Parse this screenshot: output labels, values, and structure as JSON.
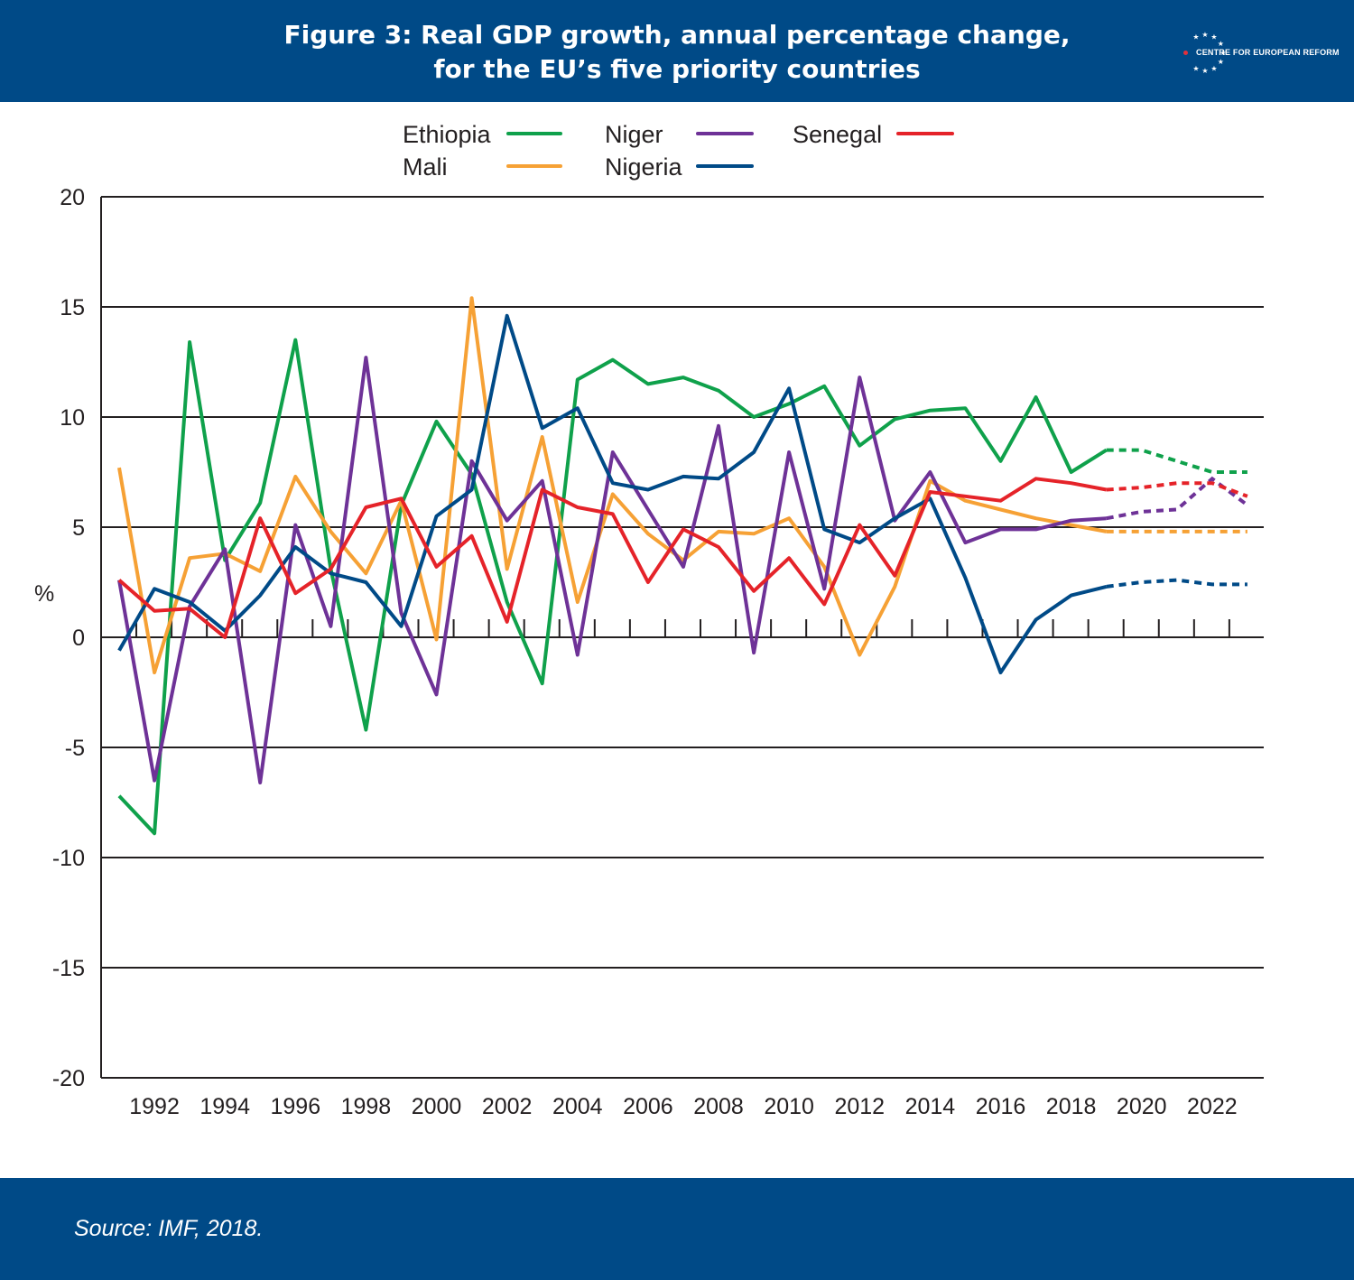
{
  "title": {
    "line1": "Figure 3: Real GDP growth, annual percentage change,",
    "line2": "for the EU’s five priority countries"
  },
  "logo": {
    "text": "CENTRE FOR EUROPEAN REFORM",
    "star_color": "#ffffff",
    "dot_color": "#e0313d"
  },
  "source": "Source: IMF, 2018.",
  "colors": {
    "header_bg": "#004a87",
    "grid": "#231f20"
  },
  "chart_data": {
    "type": "line",
    "ylabel": "%",
    "ylim": [
      -20,
      20
    ],
    "yticks": [
      20,
      15,
      10,
      5,
      0,
      -5,
      -10,
      -15,
      -20
    ],
    "xlim": [
      1991,
      2023
    ],
    "xtick_labels": [
      "1992",
      "1994",
      "1996",
      "1998",
      "2000",
      "2002",
      "2004",
      "2006",
      "2008",
      "2010",
      "2012",
      "2014",
      "2016",
      "2018",
      "2020",
      "2022"
    ],
    "grid": true,
    "legend_position": "top-center",
    "projection_note": "dashed from 2019 onward",
    "years": [
      1991,
      1992,
      1993,
      1994,
      1995,
      1996,
      1997,
      1998,
      1999,
      2000,
      2001,
      2002,
      2003,
      2004,
      2005,
      2006,
      2007,
      2008,
      2009,
      2010,
      2011,
      2012,
      2013,
      2014,
      2015,
      2016,
      2017,
      2018,
      2019,
      2020,
      2021,
      2022,
      2023
    ],
    "projection_start": 2019,
    "series": [
      {
        "name": "Ethiopia",
        "color": "#0fa14b",
        "values": [
          -7.2,
          -8.9,
          13.4,
          3.5,
          6.1,
          13.5,
          3.1,
          -4.2,
          6.0,
          9.8,
          7.4,
          1.6,
          -2.1,
          11.7,
          12.6,
          11.5,
          11.8,
          11.2,
          10.0,
          10.6,
          11.4,
          8.7,
          9.9,
          10.3,
          10.4,
          8.0,
          10.9,
          7.5,
          8.5,
          8.5,
          8.0,
          7.5,
          7.5
        ]
      },
      {
        "name": "Mali",
        "color": "#f6a135",
        "values": [
          7.7,
          -1.6,
          3.6,
          3.8,
          3.0,
          7.3,
          4.8,
          2.9,
          6.2,
          -0.1,
          15.4,
          3.1,
          9.1,
          1.6,
          6.5,
          4.7,
          3.5,
          4.8,
          4.7,
          5.4,
          3.2,
          -0.8,
          2.3,
          7.1,
          6.2,
          5.8,
          5.4,
          5.1,
          4.8,
          4.8,
          4.8,
          4.8,
          4.8
        ]
      },
      {
        "name": "Niger",
        "color": "#6e3297",
        "values": [
          2.6,
          -6.5,
          1.4,
          4.0,
          -6.6,
          5.1,
          0.5,
          12.7,
          1.1,
          -2.6,
          8.0,
          5.3,
          7.1,
          -0.8,
          8.4,
          5.8,
          3.2,
          9.6,
          -0.7,
          8.4,
          2.2,
          11.8,
          5.3,
          7.5,
          4.3,
          4.9,
          4.9,
          5.3,
          5.4,
          5.7,
          5.8,
          7.2,
          6.0
        ]
      },
      {
        "name": "Nigeria",
        "color": "#004a87",
        "values": [
          -0.6,
          2.2,
          1.6,
          0.3,
          1.9,
          4.1,
          2.9,
          2.5,
          0.5,
          5.5,
          6.7,
          14.6,
          9.5,
          10.4,
          7.0,
          6.7,
          7.3,
          7.2,
          8.4,
          11.3,
          4.9,
          4.3,
          5.4,
          6.3,
          2.7,
          -1.6,
          0.8,
          1.9,
          2.3,
          2.5,
          2.6,
          2.4,
          2.4
        ]
      },
      {
        "name": "Senegal",
        "color": "#e52329",
        "values": [
          2.6,
          1.2,
          1.3,
          0.0,
          5.4,
          2.0,
          3.1,
          5.9,
          6.3,
          3.2,
          4.6,
          0.7,
          6.7,
          5.9,
          5.6,
          2.5,
          4.9,
          4.1,
          2.1,
          3.6,
          1.5,
          5.1,
          2.8,
          6.6,
          6.4,
          6.2,
          7.2,
          7.0,
          6.7,
          6.8,
          7.0,
          7.0,
          6.4
        ]
      }
    ]
  }
}
